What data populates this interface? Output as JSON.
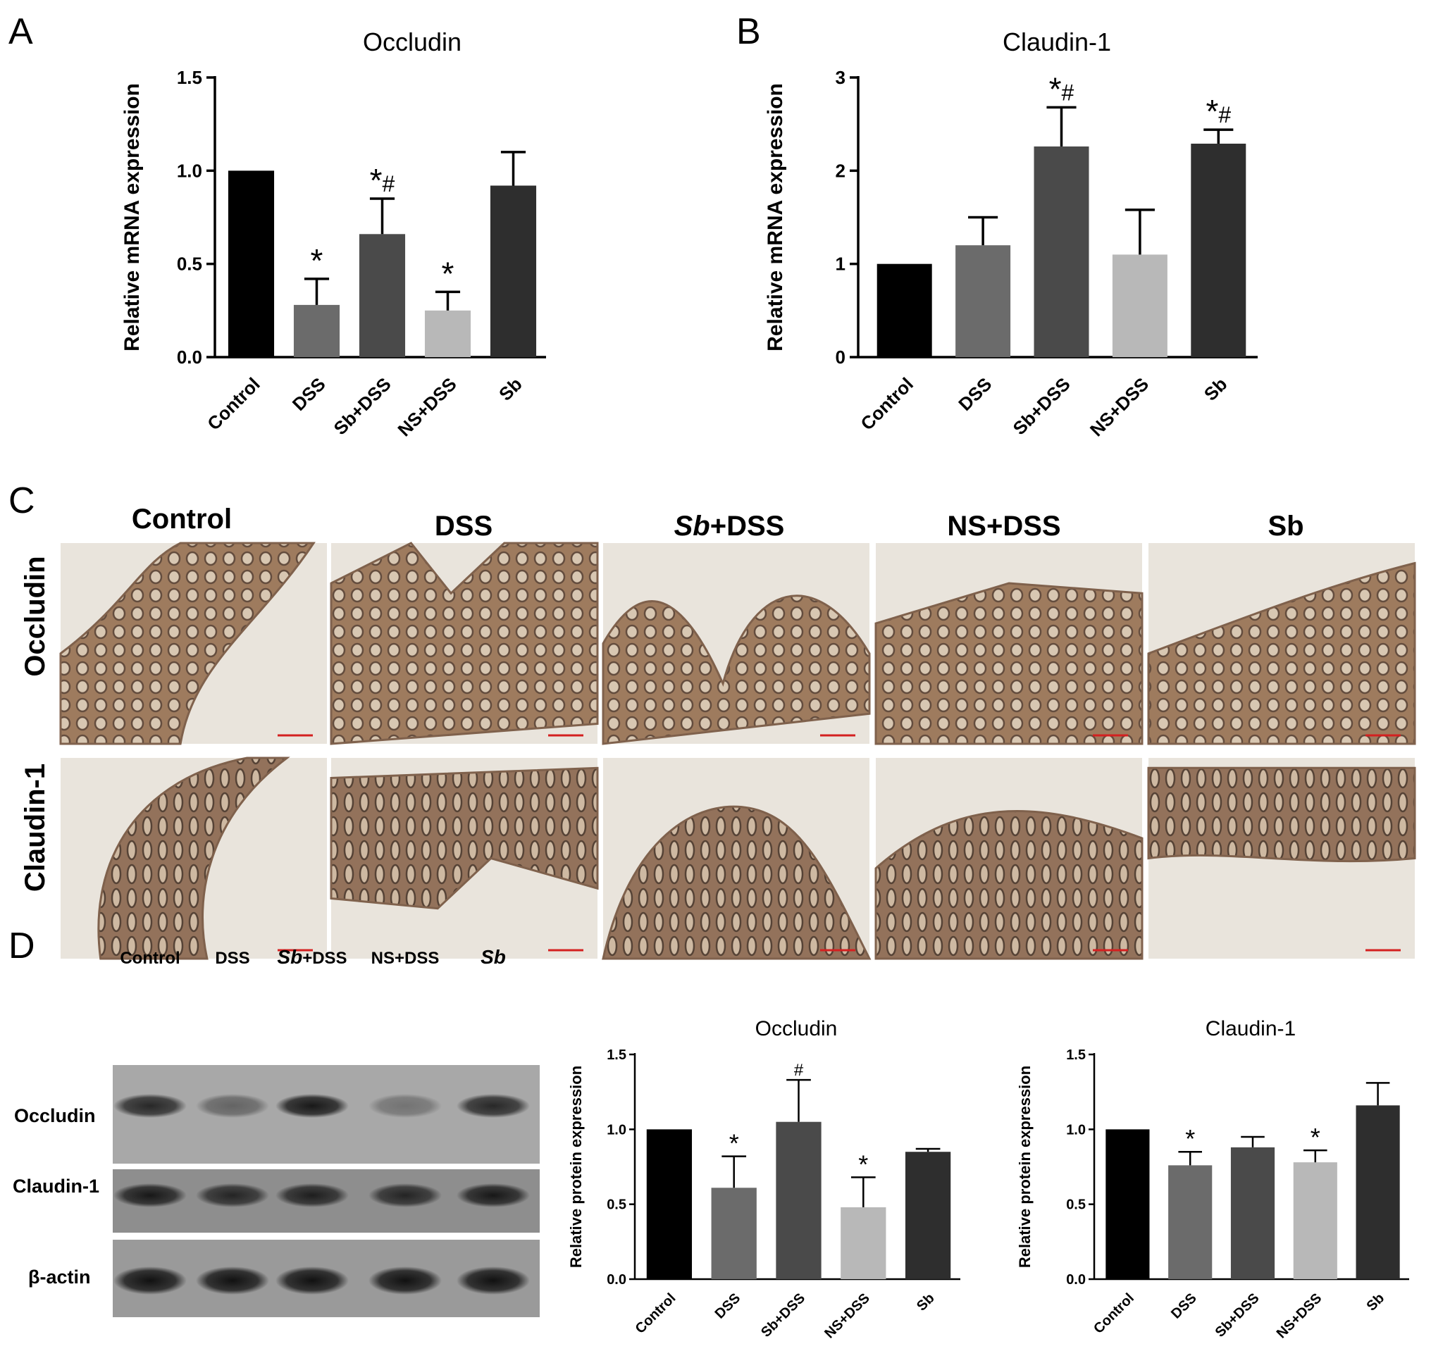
{
  "panels": {
    "A": "A",
    "B": "B",
    "C": "C",
    "D": "D"
  },
  "colors": {
    "control": "#000000",
    "dss": "#6b6b6b",
    "sb_dss": "#4a4a4a",
    "ns_dss": "#b8b8b8",
    "sb": "#2e2e2e",
    "scalebar": "#d42020"
  },
  "chart_data": [
    {
      "id": "A",
      "type": "bar",
      "title": "Occludin",
      "xlabel": "",
      "ylabel": "Relative mRNA expression",
      "categories": [
        "Control",
        "DSS",
        "Sb+DSS",
        "NS+DSS",
        "Sb"
      ],
      "values": [
        1.0,
        0.28,
        0.66,
        0.25,
        0.92
      ],
      "errors": [
        0.0,
        0.14,
        0.19,
        0.1,
        0.18
      ],
      "annotations": [
        "",
        "*",
        "*#",
        "*",
        ""
      ],
      "ylim": [
        0,
        1.5
      ],
      "yticks": [
        "0.0",
        "0.5",
        "1.0",
        "1.5"
      ],
      "ytick_values": [
        0,
        0.5,
        1.0,
        1.5
      ]
    },
    {
      "id": "B",
      "type": "bar",
      "title": "Claudin-1",
      "xlabel": "",
      "ylabel": "Relative mRNA expression",
      "categories": [
        "Control",
        "DSS",
        "Sb+DSS",
        "NS+DSS",
        "Sb"
      ],
      "values": [
        1.0,
        1.2,
        2.26,
        1.1,
        2.29
      ],
      "errors": [
        0.0,
        0.3,
        0.42,
        0.48,
        0.15
      ],
      "annotations": [
        "",
        "",
        "*#",
        "",
        "*#"
      ],
      "ylim": [
        0,
        3
      ],
      "yticks": [
        "0",
        "1",
        "2",
        "3"
      ],
      "ytick_values": [
        0,
        1,
        2,
        3
      ]
    },
    {
      "id": "D-occludin",
      "type": "bar",
      "title": "Occludin",
      "xlabel": "",
      "ylabel": "Relative protein expression",
      "categories": [
        "Control",
        "DSS",
        "Sb+DSS",
        "NS+DSS",
        "Sb"
      ],
      "values": [
        1.0,
        0.61,
        1.05,
        0.48,
        0.85
      ],
      "errors": [
        0.0,
        0.21,
        0.28,
        0.2,
        0.02
      ],
      "annotations": [
        "",
        "*",
        "#",
        "*",
        ""
      ],
      "ylim": [
        0,
        1.5
      ],
      "yticks": [
        "0.0",
        "0.5",
        "1.0",
        "1.5"
      ],
      "ytick_values": [
        0,
        0.5,
        1.0,
        1.5
      ]
    },
    {
      "id": "D-claudin",
      "type": "bar",
      "title": "Claudin-1",
      "xlabel": "",
      "ylabel": "Relative protein expression",
      "categories": [
        "Control",
        "DSS",
        "Sb+DSS",
        "NS+DSS",
        "Sb"
      ],
      "values": [
        1.0,
        0.76,
        0.88,
        0.78,
        1.16
      ],
      "errors": [
        0.0,
        0.09,
        0.07,
        0.08,
        0.15
      ],
      "annotations": [
        "",
        "*",
        "",
        "*",
        ""
      ],
      "ylim": [
        0,
        1.5
      ],
      "yticks": [
        "0.0",
        "0.5",
        "1.0",
        "1.5"
      ],
      "ytick_values": [
        0,
        0.5,
        1.0,
        1.5
      ]
    }
  ],
  "ihc": {
    "columns": [
      {
        "pre": "",
        "italic": "",
        "post": "Control"
      },
      {
        "pre": "",
        "italic": "",
        "post": "DSS"
      },
      {
        "pre": "",
        "italic": "Sb",
        "post": "+DSS"
      },
      {
        "pre": "",
        "italic": "",
        "post": "NS+DSS"
      },
      {
        "pre": "",
        "italic": "",
        "post": "Sb"
      }
    ],
    "rows": [
      "Occludin",
      "Claudin-1"
    ]
  },
  "western": {
    "columns": [
      {
        "italic": "",
        "post": "Control"
      },
      {
        "italic": "",
        "post": "DSS"
      },
      {
        "italic": "Sb",
        "post": "+DSS"
      },
      {
        "italic": "",
        "post": "NS+DSS"
      },
      {
        "italic": "Sb",
        "post": ""
      }
    ],
    "rows": [
      "Occludin",
      "Claudin-1",
      "β-actin"
    ],
    "band_intensity": [
      [
        0.85,
        0.45,
        0.95,
        0.35,
        0.85
      ],
      [
        0.95,
        0.85,
        0.9,
        0.85,
        0.95
      ],
      [
        1.0,
        1.0,
        1.0,
        1.0,
        1.0
      ]
    ]
  }
}
